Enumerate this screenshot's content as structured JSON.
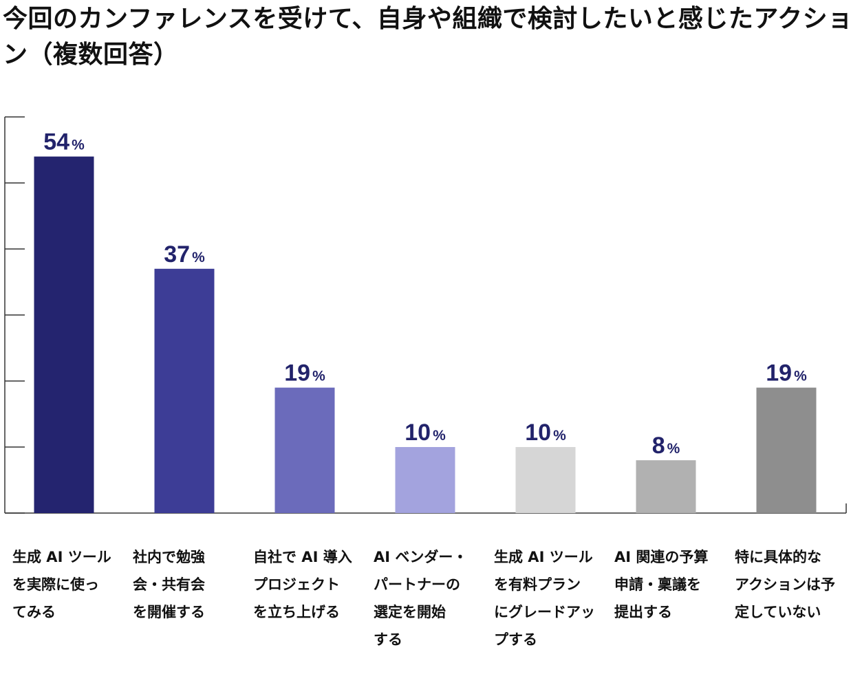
{
  "chart_data": {
    "type": "bar",
    "title": "今回のカンファレンスを受けて、自身や組織で検討したいと感じたアクション（複数回答）",
    "categories": [
      "生成AIツールを実際に使ってみる",
      "社内で勉強会・共有会を開催する",
      "自社でAI導入プロジェクトを立ち上げる",
      "AIベンダー・パートナーの選定を開始する",
      "生成AIツールを有料プランにグレードアップする",
      "AI関連の予算申請・稟議を提出する",
      "特に具体的なアクションは予定していない"
    ],
    "category_lines": [
      [
        "生成 AI ツール",
        "を実際に使っ",
        "てみる"
      ],
      [
        "社内で勉強",
        "会・共有会",
        "を開催する"
      ],
      [
        "自社で AI 導入",
        "プロジェクト",
        "を立ち上げる"
      ],
      [
        "AI ベンダー・",
        "パートナーの",
        "選定を開始",
        "する"
      ],
      [
        "生成 AI ツール",
        "を有料プラン",
        "にグレードアッ",
        "プする"
      ],
      [
        "AI 関連の予算",
        "申請・稟議を",
        "提出する"
      ],
      [
        "特に具体的な",
        "アクションは予",
        "定していない"
      ]
    ],
    "values": [
      54,
      37,
      19,
      10,
      10,
      8,
      19
    ],
    "unit": "%",
    "colors": [
      "#24246f",
      "#3d3d96",
      "#6b6bbb",
      "#a3a3de",
      "#d6d6d6",
      "#b1b1b1",
      "#8e8e8e"
    ],
    "ylim": [
      0,
      60
    ],
    "xlabel": "",
    "ylabel": "",
    "grid": false,
    "legend": "none"
  }
}
